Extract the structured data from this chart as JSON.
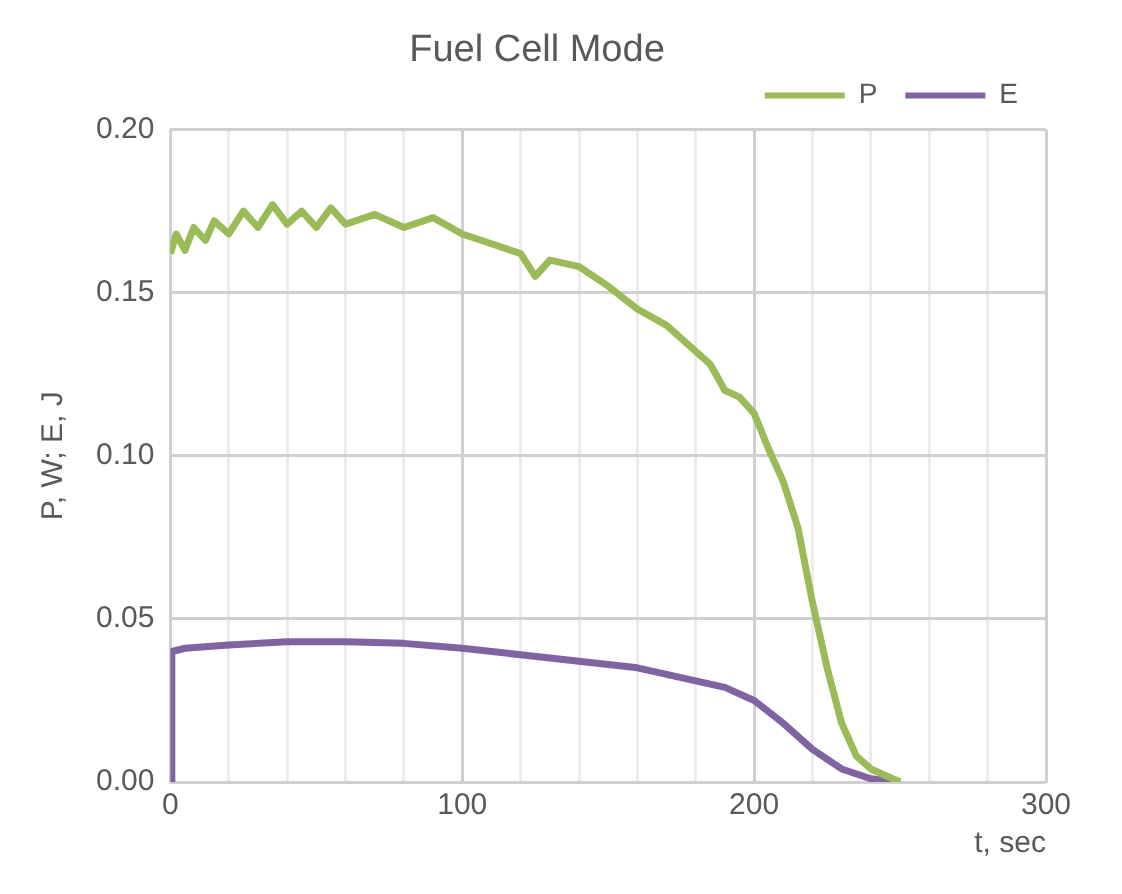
{
  "chart_data": {
    "type": "line",
    "title": "Fuel Cell Mode",
    "xlabel": "t, sec",
    "ylabel": "P, W; E, J",
    "xlim": [
      0,
      300
    ],
    "ylim": [
      0,
      0.2
    ],
    "xticks": [
      0,
      {
        "value": 20,
        "label": null
      },
      {
        "value": 40,
        "label": null
      },
      {
        "value": 60,
        "label": null
      },
      {
        "value": 80,
        "label": null
      },
      100,
      {
        "value": 120,
        "label": null
      },
      {
        "value": 140,
        "label": null
      },
      {
        "value": 160,
        "label": null
      },
      {
        "value": 180,
        "label": null
      },
      200,
      {
        "value": 220,
        "label": null
      },
      {
        "value": 240,
        "label": null
      },
      {
        "value": 260,
        "label": null
      },
      {
        "value": 280,
        "label": null
      },
      300
    ],
    "yticks": [
      {
        "value": 0,
        "label": "0.00"
      },
      0.05,
      {
        "value": 0.1,
        "label": "0.10"
      },
      0.15,
      {
        "value": 0.2,
        "label": "0.20"
      }
    ],
    "grid": true,
    "legend": "top right",
    "marker": "none",
    "line_style": "solid",
    "series": [
      {
        "name": "P",
        "color": "#9bbb59",
        "x": [
          0,
          2,
          5,
          8,
          12,
          15,
          20,
          25,
          30,
          35,
          40,
          45,
          50,
          55,
          60,
          70,
          80,
          90,
          100,
          110,
          120,
          125,
          130,
          140,
          150,
          160,
          170,
          180,
          185,
          190,
          195,
          200,
          205,
          210,
          215,
          220,
          225,
          230,
          235,
          240,
          245,
          250
        ],
        "values": [
          0.162,
          0.168,
          0.163,
          0.17,
          0.166,
          0.172,
          0.168,
          0.175,
          0.17,
          0.177,
          0.171,
          0.175,
          0.17,
          0.176,
          0.171,
          0.174,
          0.17,
          0.173,
          0.168,
          0.165,
          0.162,
          0.155,
          0.16,
          0.158,
          0.152,
          0.145,
          0.14,
          0.132,
          0.128,
          0.12,
          0.118,
          0.113,
          0.102,
          0.092,
          0.078,
          0.055,
          0.035,
          0.018,
          0.008,
          0.004,
          0.002,
          0
        ]
      },
      {
        "name": "E",
        "color": "#8064a2",
        "x": [
          0,
          0.5,
          5,
          20,
          40,
          60,
          80,
          100,
          120,
          140,
          160,
          180,
          190,
          200,
          210,
          220,
          230,
          240,
          250
        ],
        "values": [
          0,
          0.04,
          0.041,
          0.042,
          0.043,
          0.043,
          0.0425,
          0.041,
          0.039,
          0.037,
          0.035,
          0.031,
          0.029,
          0.025,
          0.018,
          0.01,
          0.004,
          0.001,
          0
        ]
      }
    ]
  }
}
